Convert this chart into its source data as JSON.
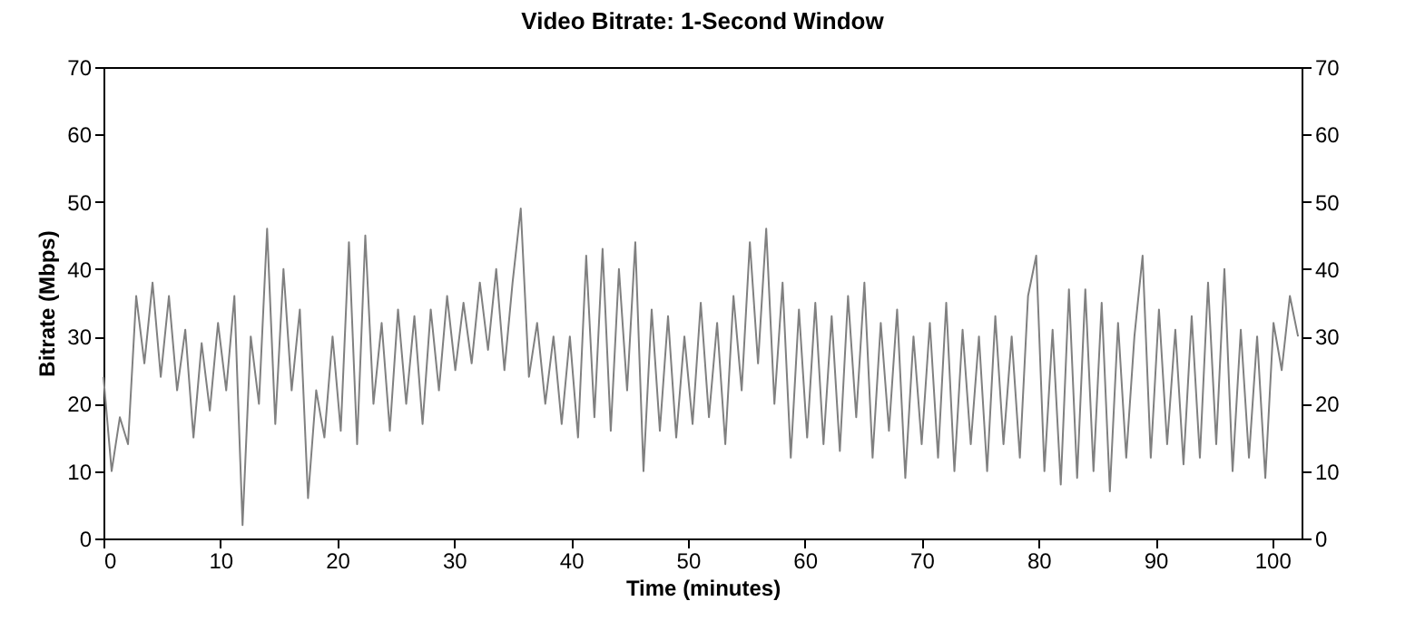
{
  "chart_data": {
    "type": "line",
    "title": "Video Bitrate: 1-Second Window",
    "xlabel": "Time (minutes)",
    "ylabel": "Bitrate (Mbps)",
    "x": [
      0,
      0.7,
      1.4,
      2.1,
      2.8,
      3.5,
      4.2,
      4.9,
      5.6,
      6.3,
      7.0,
      7.7,
      8.4,
      9.1,
      9.8,
      10.5,
      11.2,
      11.9,
      12.6,
      13.3,
      14.0,
      14.7,
      15.4,
      16.1,
      16.8,
      17.5,
      18.2,
      18.9,
      19.6,
      20.3,
      21.0,
      21.7,
      22.4,
      23.1,
      23.8,
      24.5,
      25.2,
      25.9,
      26.6,
      27.3,
      28.0,
      28.7,
      29.4,
      30.1,
      30.8,
      31.5,
      32.2,
      32.9,
      33.6,
      34.3,
      35.0,
      35.7,
      36.4,
      37.1,
      37.8,
      38.5,
      39.2,
      39.9,
      40.6,
      41.3,
      42.0,
      42.7,
      43.4,
      44.1,
      44.8,
      45.5,
      46.2,
      46.9,
      47.6,
      48.3,
      49.0,
      49.7,
      50.4,
      51.1,
      51.8,
      52.5,
      53.2,
      53.9,
      54.6,
      55.3,
      56.0,
      56.7,
      57.4,
      58.1,
      58.8,
      59.5,
      60.2,
      60.9,
      61.6,
      62.3,
      63.0,
      63.7,
      64.4,
      65.1,
      65.8,
      66.5,
      67.2,
      67.9,
      68.6,
      69.3,
      70.0,
      70.7,
      71.4,
      72.1,
      72.8,
      73.5,
      74.2,
      74.9,
      75.6,
      76.3,
      77.0,
      77.7,
      78.4,
      79.1,
      79.8,
      80.5,
      81.2,
      81.9,
      82.6,
      83.3,
      84.0,
      84.7,
      85.4,
      86.1,
      86.8,
      87.5,
      88.2,
      88.9,
      89.6,
      90.3,
      91.0,
      91.7,
      92.4,
      93.1,
      93.8,
      94.5,
      95.2,
      95.9,
      96.6,
      97.3,
      98.0,
      98.7,
      99.4,
      100.1,
      100.8,
      101.5,
      102.2
    ],
    "series": [
      {
        "color": "#808080",
        "values": [
          24,
          10,
          18,
          14,
          36,
          26,
          38,
          24,
          36,
          22,
          31,
          15,
          29,
          19,
          32,
          22,
          36,
          2,
          30,
          20,
          46,
          17,
          40,
          22,
          34,
          6,
          22,
          15,
          30,
          16,
          44,
          14,
          45,
          20,
          32,
          16,
          34,
          20,
          33,
          17,
          34,
          22,
          36,
          25,
          35,
          26,
          38,
          28,
          40,
          25,
          38,
          49,
          24,
          32,
          20,
          30,
          17,
          30,
          15,
          42,
          18,
          43,
          16,
          40,
          22,
          44,
          10,
          34,
          16,
          33,
          15,
          30,
          17,
          35,
          18,
          32,
          14,
          36,
          22,
          44,
          26,
          46,
          20,
          38,
          12,
          34,
          15,
          35,
          14,
          33,
          13,
          36,
          18,
          38,
          12,
          32,
          16,
          34,
          9,
          30,
          14,
          32,
          12,
          35,
          10,
          31,
          14,
          30,
          10,
          33,
          14,
          30,
          12,
          36,
          42,
          10,
          31,
          8,
          37,
          9,
          37,
          10,
          35,
          7,
          32,
          12,
          30,
          42,
          12,
          34,
          14,
          31,
          11,
          33,
          12,
          38,
          14,
          40,
          10,
          31,
          12,
          30,
          9,
          32,
          25,
          36,
          30
        ]
      }
    ],
    "xlim": [
      0,
      102.5
    ],
    "xticks": [
      0,
      10,
      20,
      30,
      40,
      50,
      60,
      70,
      80,
      90,
      100
    ],
    "ylim": [
      0,
      70
    ],
    "yticks": [
      0,
      10,
      20,
      30,
      40,
      50,
      60,
      70
    ],
    "y2lim": [
      0,
      70
    ],
    "y2ticks": [
      0,
      10,
      20,
      30,
      40,
      50,
      60,
      70
    ],
    "grid": false,
    "legend": false,
    "marker": "none",
    "line_style": "solid"
  }
}
